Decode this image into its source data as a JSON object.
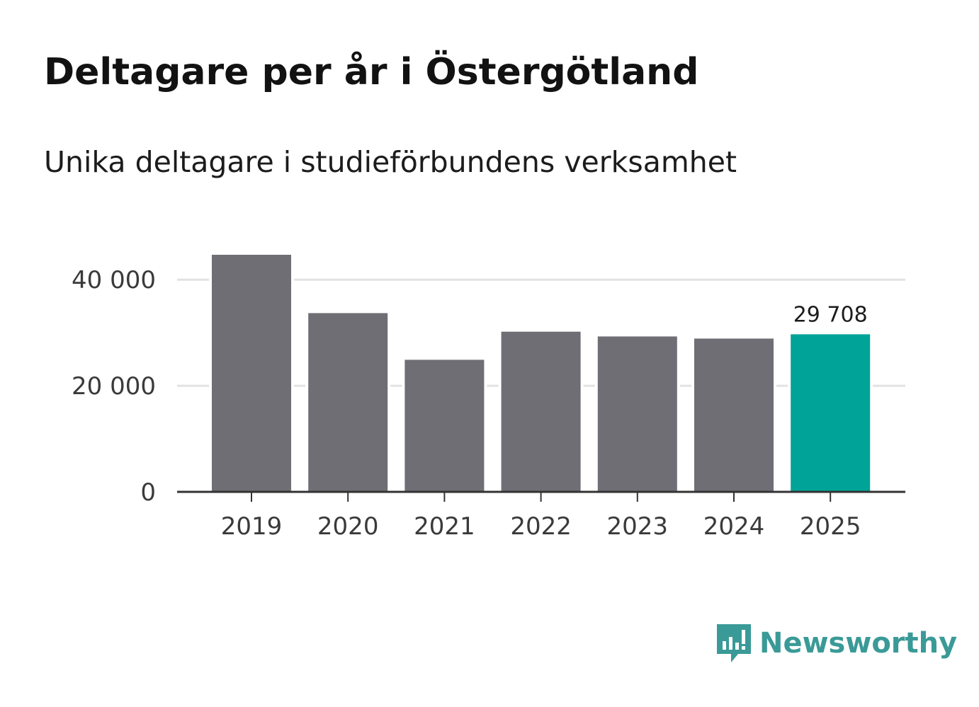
{
  "header": {
    "title": "Deltagare per år i Östergötland",
    "subtitle": "Unika deltagare i studieförbundens verksamhet"
  },
  "brand": {
    "name": "Newsworthy",
    "icon": "newsworthy-logo-icon",
    "color": "#3a9a97"
  },
  "colors": {
    "bar_default": "#6f6e74",
    "bar_highlight": "#00a398",
    "grid": "#e2e2e2",
    "axis": "#333333"
  },
  "chart_data": {
    "type": "bar",
    "title": "Deltagare per år i Östergötland",
    "subtitle": "Unika deltagare i studieförbundens verksamhet",
    "categories": [
      "2019",
      "2020",
      "2021",
      "2022",
      "2023",
      "2024",
      "2025"
    ],
    "values": [
      44700,
      33700,
      24900,
      30200,
      29300,
      28900,
      29708
    ],
    "highlight_index": 6,
    "data_labels": [
      {
        "index": 6,
        "text": "29 708"
      }
    ],
    "xlabel": "",
    "ylabel": "",
    "ylim": [
      0,
      44700
    ],
    "yticks": [
      0,
      20000,
      40000
    ],
    "ytick_labels": [
      "0",
      "20 000",
      "40 000"
    ],
    "grid": true
  }
}
